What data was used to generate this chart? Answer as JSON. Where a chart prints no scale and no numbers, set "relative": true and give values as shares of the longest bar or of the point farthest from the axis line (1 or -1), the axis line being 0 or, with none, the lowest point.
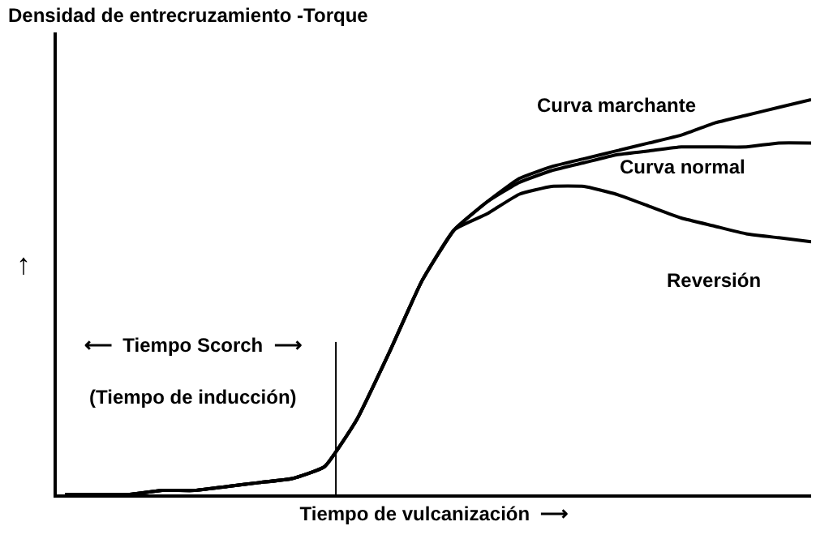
{
  "chart_data": {
    "type": "line",
    "relative": true,
    "title": "Densidad de entrecruzamiento -Torque",
    "ylabel": "↑",
    "xlabel": "Tiempo de vulcanización  ⟶",
    "categories": [
      null,
      null,
      null,
      null,
      null,
      null,
      null,
      null,
      null,
      null,
      null,
      null,
      null,
      null,
      null,
      null,
      null,
      null,
      null,
      null,
      null,
      null,
      null,
      null
    ],
    "series": [
      {
        "name": "Curva marchante",
        "color": "#000000",
        "values": [
          0,
          0,
          0,
          0.01,
          0.01,
          0.02,
          0.03,
          0.04,
          0.07,
          0.19,
          0.36,
          0.54,
          0.67,
          0.74,
          0.8,
          0.83,
          0.85,
          0.87,
          0.89,
          0.91,
          0.94,
          0.96,
          0.98,
          1.0
        ]
      },
      {
        "name": "Curva normal",
        "color": "#000000",
        "values": [
          0,
          0,
          0,
          0.01,
          0.01,
          0.02,
          0.03,
          0.04,
          0.07,
          0.19,
          0.36,
          0.54,
          0.67,
          0.74,
          0.79,
          0.82,
          0.84,
          0.86,
          0.87,
          0.88,
          0.88,
          0.88,
          0.89,
          0.89
        ]
      },
      {
        "name": "Reversión",
        "color": "#000000",
        "values": [
          0,
          0,
          0,
          0.01,
          0.01,
          0.02,
          0.03,
          0.04,
          0.07,
          0.19,
          0.36,
          0.54,
          0.67,
          0.71,
          0.76,
          0.78,
          0.78,
          0.76,
          0.73,
          0.7,
          0.68,
          0.66,
          0.65,
          0.64
        ]
      }
    ],
    "annotations": [
      "⟵  Tiempo Scorch  ⟶",
      "(Tiempo de inducción)"
    ],
    "legend": false,
    "marker": "none",
    "line_style": "solid",
    "tick_labels": false
  }
}
